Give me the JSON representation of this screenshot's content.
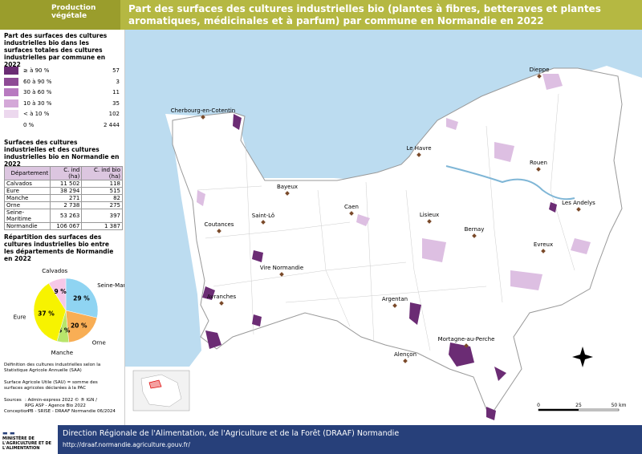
{
  "header": {
    "tag": "Production végétale",
    "title": "Part des surfaces des cultures industrielles bio (plantes à fibres, betteraves et plantes aromatiques, médicinales et à parfum) par commune en Normandie en 2022"
  },
  "legend": {
    "title": "Part des surfaces des cultures industrielles bio dans les surfaces totales des cultures industrielles par commune en 2022",
    "classes": [
      {
        "label": "≥ à 90 %",
        "count": "57",
        "color": "#6b2c74"
      },
      {
        "label": "60 à 90 %",
        "count": "3",
        "color": "#8e4a95"
      },
      {
        "label": "30 à 60 %",
        "count": "11",
        "color": "#b87ac0"
      },
      {
        "label": "10 à 30 %",
        "count": "35",
        "color": "#d4a8d8"
      },
      {
        "label": "< à 10 %",
        "count": "102",
        "color": "#ecd8ee"
      },
      {
        "label": "0 %",
        "count": "2 444",
        "color": "#ffffff"
      }
    ]
  },
  "table": {
    "title": "Surfaces des cultures industrielles et des cultures industrielles bio en Normandie en 2022",
    "headers": [
      "Département",
      "C. ind (ha)",
      "C. ind bio (ha)"
    ],
    "rows": [
      [
        "Calvados",
        "11 502",
        "118"
      ],
      [
        "Eure",
        "38 294",
        "515"
      ],
      [
        "Manche",
        "271",
        "82"
      ],
      [
        "Orne",
        "2 738",
        "275"
      ],
      [
        "Seine-Maritime",
        "53 263",
        "397"
      ],
      [
        "Normandie",
        "106 067",
        "1 387"
      ]
    ]
  },
  "pie": {
    "type": "pie",
    "title": "Répartition des surfaces des cultures industrielles bio entre les départements de Normandie en 2022",
    "categories": [
      "Seine-Maritime",
      "Orne",
      "Manche",
      "Eure",
      "Calvados"
    ],
    "values": [
      29,
      20,
      6,
      37,
      9
    ],
    "value_labels": [
      "29 %",
      "20 %",
      "6 %",
      "37 %",
      "9 %"
    ],
    "colors": [
      "#8fd4f2",
      "#f8ae55",
      "#b8e56c",
      "#f7f300",
      "#f6c8e8"
    ]
  },
  "notes": [
    "Définition des cultures industrielles selon la Statistique Agricole Annuelle (SAA)",
    "Surface Agricole Utile (SAU) = somme des surfaces agricoles déclarées à la PAC"
  ],
  "sources": [
    [
      "Sources",
      ": Admin-express 2022 © ® IGN /"
    ],
    [
      "",
      "RPG ASP - Agence Bio 2022"
    ],
    [
      "Conception",
      ": PB - SRISE - DRAAF Normandie 06/2024"
    ]
  ],
  "map": {
    "cities": [
      "Dieppe",
      "Cherbourg-en-Cotentin",
      "Le Havre",
      "Rouen",
      "Bayeux",
      "Caen",
      "Lisieux",
      "Saint-Lô",
      "Coutances",
      "Bernay",
      "Les Andelys",
      "Evreux",
      "Vire Normandie",
      "Avranches",
      "Argentan",
      "Mortagne-au-Perche",
      "Alençon"
    ],
    "scale": [
      "0",
      "25",
      "50 km"
    ]
  },
  "footer": {
    "ministry": "MINISTÈRE DE L'AGRICULTURE ET DE L'ALIMENTATION",
    "org": "Direction Régionale de l'Alimentation, de l'Agriculture et de la Forêt (DRAAF) Normandie",
    "url": "http://draaf.normandie.agriculture.gouv.fr/"
  }
}
